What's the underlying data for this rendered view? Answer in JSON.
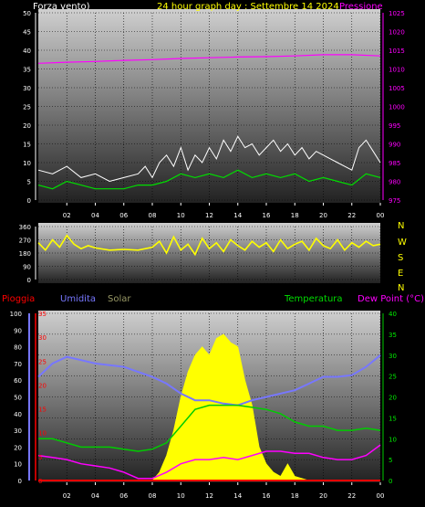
{
  "header": {
    "left_label": "Forza vento)",
    "center_label": "24 hour graph day : Settembre 14 2024",
    "right_label": "Pressione"
  },
  "x_ticks": [
    "02",
    "04",
    "06",
    "08",
    "10",
    "12",
    "14",
    "16",
    "18",
    "20",
    "22",
    "00"
  ],
  "compass": [
    "N",
    "W",
    "S",
    "E",
    "N"
  ],
  "panel3_labels": {
    "rain": "Pioggia",
    "humidity": "Umidita",
    "solar": "Solar",
    "temperature": "Temperatura",
    "dewpoint": "Dew Point (°C)"
  },
  "colors": {
    "wind_speed": "#ffffff",
    "wind_avg": "#00dd00",
    "pressure": "#ff00ff",
    "direction": "#ffff00",
    "rain": "#ff0000",
    "humidity": "#7777ff",
    "solar": "#ffff00",
    "temperature": "#00cc00",
    "dewpoint": "#ff00ff"
  },
  "chart_data": [
    {
      "type": "line",
      "ylabel": "Forza vento)",
      "ylabel_right": "Pressione",
      "ylim": [
        0,
        50
      ],
      "yticks": [
        "0",
        "5",
        "10",
        "15",
        "20",
        "25",
        "30",
        "35",
        "40",
        "45",
        "50"
      ],
      "ylim_right": [
        975,
        1025
      ],
      "yticks_right": [
        "975",
        "980",
        "985",
        "990",
        "995",
        "1000",
        "1005",
        "1010",
        "1015",
        "1020",
        "1025"
      ],
      "x_hours": [
        0,
        24
      ],
      "series": [
        {
          "key": "gust",
          "x": [
            0,
            1,
            2,
            3,
            4,
            5,
            6,
            7,
            7.5,
            8,
            8.5,
            9,
            9.5,
            10,
            10.5,
            11,
            11.5,
            12,
            12.5,
            13,
            13.5,
            14,
            14.5,
            15,
            15.5,
            16,
            16.5,
            17,
            17.5,
            18,
            18.5,
            19,
            19.5,
            20,
            20.5,
            21,
            21.5,
            22,
            22.5,
            23,
            23.5,
            24
          ],
          "values": [
            8,
            7,
            9,
            6,
            7,
            5,
            6,
            7,
            9,
            6,
            10,
            12,
            9,
            14,
            8,
            12,
            10,
            14,
            11,
            16,
            13,
            17,
            14,
            15,
            12,
            14,
            16,
            13,
            15,
            12,
            14,
            11,
            13,
            12,
            11,
            10,
            9,
            8,
            14,
            16,
            13,
            10
          ]
        },
        {
          "key": "speed_avg",
          "x": [
            0,
            1,
            2,
            3,
            4,
            5,
            6,
            7,
            8,
            9,
            10,
            11,
            12,
            13,
            14,
            15,
            16,
            17,
            18,
            19,
            20,
            21,
            22,
            23,
            24
          ],
          "values": [
            4,
            3,
            5,
            4,
            3,
            3,
            3,
            4,
            4,
            5,
            7,
            6,
            7,
            6,
            8,
            6,
            7,
            6,
            7,
            5,
            6,
            5,
            4,
            7,
            6
          ]
        },
        {
          "key": "pressure",
          "x": [
            0,
            2,
            4,
            6,
            8,
            10,
            12,
            14,
            16,
            18,
            20,
            22,
            24
          ],
          "values": [
            1011.5,
            1011.8,
            1012.0,
            1012.3,
            1012.5,
            1012.8,
            1013.0,
            1013.2,
            1013.3,
            1013.5,
            1013.8,
            1013.8,
            1013.5
          ]
        }
      ]
    },
    {
      "type": "line",
      "ylabel": "direction",
      "ylim": [
        0,
        360
      ],
      "yticks": [
        "0",
        "90",
        "180",
        "270",
        "360"
      ],
      "x_hours": [
        0,
        24
      ],
      "series": [
        {
          "key": "direction",
          "x": [
            0,
            0.5,
            1,
            1.5,
            2,
            2.5,
            3,
            3.5,
            4,
            5,
            6,
            7,
            8,
            8.5,
            9,
            9.5,
            10,
            10.5,
            11,
            11.5,
            12,
            12.5,
            13,
            13.5,
            14,
            14.5,
            15,
            15.5,
            16,
            16.5,
            17,
            17.5,
            18,
            18.5,
            19,
            19.5,
            20,
            20.5,
            21,
            21.5,
            22,
            22.5,
            23,
            23.5,
            24
          ],
          "values": [
            250,
            200,
            270,
            220,
            300,
            240,
            210,
            230,
            215,
            200,
            205,
            200,
            220,
            260,
            180,
            290,
            200,
            240,
            170,
            280,
            210,
            250,
            190,
            270,
            230,
            200,
            260,
            220,
            250,
            190,
            270,
            210,
            240,
            260,
            200,
            280,
            230,
            210,
            270,
            200,
            250,
            220,
            260,
            230,
            240
          ]
        }
      ]
    },
    {
      "type": "line",
      "ylabel": "Pioggia",
      "ylim_left_humidity": [
        0,
        100
      ],
      "yticks_humidity": [
        "0",
        "10",
        "20",
        "30",
        "40",
        "50",
        "60",
        "70",
        "80",
        "90",
        "100"
      ],
      "ylim_left_rain": [
        0,
        35
      ],
      "yticks_rain": [
        "0",
        "5",
        "10",
        "15",
        "20",
        "25",
        "30",
        "35"
      ],
      "ylim_right": [
        0,
        40
      ],
      "yticks_right": [
        "0",
        "5",
        "10",
        "15",
        "20",
        "25",
        "30",
        "35",
        "40"
      ],
      "x_hours": [
        0,
        24
      ],
      "series": [
        {
          "key": "humidity",
          "x": [
            0,
            1,
            2,
            3,
            4,
            5,
            6,
            7,
            8,
            9,
            10,
            11,
            12,
            13,
            14,
            15,
            16,
            17,
            18,
            19,
            20,
            21,
            22,
            23,
            24
          ],
          "values": [
            62,
            70,
            74,
            72,
            70,
            69,
            68,
            65,
            62,
            58,
            52,
            48,
            48,
            46,
            45,
            48,
            50,
            52,
            54,
            58,
            62,
            62,
            63,
            68,
            75
          ]
        },
        {
          "key": "solar",
          "x": [
            7,
            8,
            8.5,
            9,
            9.5,
            10,
            10.5,
            11,
            11.5,
            12,
            12.5,
            13,
            13.5,
            14,
            14.5,
            15,
            15.5,
            16,
            16.5,
            17,
            17.5,
            18,
            19
          ],
          "values": [
            0,
            0,
            2,
            6,
            12,
            20,
            26,
            30,
            32,
            30,
            34,
            35,
            33,
            32,
            24,
            18,
            8,
            4,
            2,
            1,
            4,
            1,
            0
          ]
        },
        {
          "key": "temperature",
          "x": [
            0,
            1,
            2,
            3,
            4,
            5,
            6,
            7,
            8,
            9,
            10,
            11,
            12,
            13,
            14,
            15,
            16,
            17,
            18,
            19,
            20,
            21,
            22,
            23,
            24
          ],
          "values": [
            10,
            10,
            9,
            8,
            8,
            8,
            7.5,
            7,
            7.5,
            9,
            13,
            17,
            18,
            18,
            18,
            17.5,
            17,
            16,
            14,
            13,
            13,
            12,
            12,
            12.5,
            12
          ]
        },
        {
          "key": "dewpoint",
          "x": [
            0,
            1,
            2,
            3,
            4,
            5,
            6,
            7,
            8,
            9,
            10,
            11,
            12,
            13,
            14,
            15,
            16,
            17,
            18,
            19,
            20,
            21,
            22,
            23,
            24
          ],
          "values": [
            6,
            5.5,
            5,
            4,
            3.5,
            3,
            2,
            0.5,
            0.5,
            2,
            4,
            5,
            5,
            5.5,
            5,
            6,
            7,
            7,
            6.5,
            6.5,
            5.5,
            5,
            5,
            6,
            8.5
          ]
        },
        {
          "key": "rain",
          "x": [
            0,
            24
          ],
          "values": [
            0,
            0
          ]
        }
      ]
    }
  ]
}
